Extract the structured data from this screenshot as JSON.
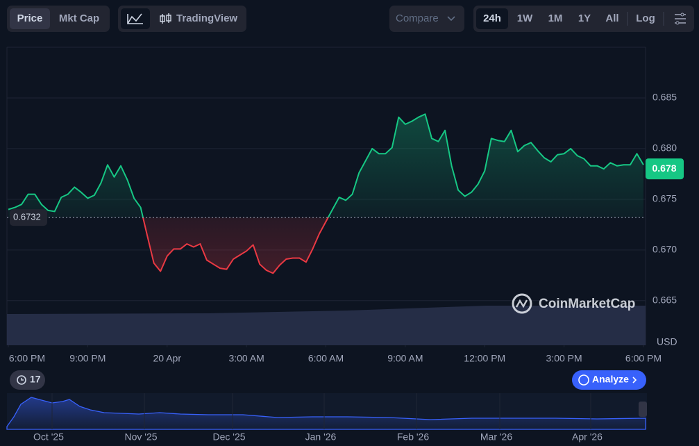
{
  "toolbar": {
    "price": "Price",
    "mkt_cap": "Mkt Cap",
    "trading_view": "TradingView",
    "compare": "Compare",
    "ranges": [
      "24h",
      "1W",
      "1M",
      "1Y",
      "All"
    ],
    "log": "Log"
  },
  "chart_data": {
    "type": "line",
    "currency": "USD",
    "x": [
      0,
      0.25,
      0.5,
      0.75,
      1,
      1.25,
      1.5,
      1.75,
      2,
      2.25,
      2.5,
      2.75,
      3,
      3.25,
      3.5,
      3.75,
      4,
      4.25,
      4.5,
      4.75,
      5,
      5.25,
      5.5,
      5.75,
      6,
      6.25,
      6.5,
      6.75,
      7,
      7.25,
      7.5,
      7.75,
      8,
      8.25,
      8.5,
      8.75,
      9,
      9.25,
      9.5,
      9.75,
      10,
      10.25,
      10.5,
      10.75,
      11,
      11.25,
      11.5,
      11.75,
      12,
      12.25,
      12.5,
      12.75,
      13,
      13.25,
      13.5,
      13.75,
      14,
      14.25,
      14.5,
      14.75,
      15,
      15.25,
      15.5,
      15.75,
      16,
      16.25,
      16.5,
      16.75,
      17,
      17.25,
      17.5,
      17.75,
      18,
      18.25,
      18.5,
      18.75,
      19,
      19.25,
      19.5,
      19.75,
      20,
      20.25,
      20.5,
      20.75,
      21,
      21.25,
      21.5,
      21.75,
      22,
      22.25,
      22.5,
      22.75,
      23,
      23.25,
      23.5,
      23.75,
      24
    ],
    "values": [
      0.674,
      0.6742,
      0.6745,
      0.6755,
      0.6755,
      0.6745,
      0.6739,
      0.6738,
      0.6752,
      0.6755,
      0.6762,
      0.6757,
      0.6751,
      0.6754,
      0.6766,
      0.6784,
      0.6772,
      0.6783,
      0.6769,
      0.6751,
      0.6742,
      0.6714,
      0.6687,
      0.6679,
      0.6694,
      0.6701,
      0.6701,
      0.6706,
      0.6703,
      0.6706,
      0.669,
      0.6686,
      0.6682,
      0.6681,
      0.6691,
      0.6695,
      0.6699,
      0.6705,
      0.6686,
      0.668,
      0.6677,
      0.6685,
      0.6691,
      0.6692,
      0.6692,
      0.6688,
      0.6701,
      0.6716,
      0.6728,
      0.674,
      0.6752,
      0.6749,
      0.6755,
      0.6776,
      0.6788,
      0.68,
      0.6795,
      0.6795,
      0.6801,
      0.6831,
      0.6824,
      0.6827,
      0.6831,
      0.6834,
      0.681,
      0.6807,
      0.6818,
      0.6783,
      0.6759,
      0.6753,
      0.6757,
      0.6765,
      0.6778,
      0.681,
      0.6808,
      0.6807,
      0.6818,
      0.6797,
      0.6803,
      0.6806,
      0.6798,
      0.6791,
      0.6787,
      0.6794,
      0.6795,
      0.68,
      0.6793,
      0.679,
      0.6783,
      0.6783,
      0.678,
      0.6786,
      0.6783,
      0.6784,
      0.6784,
      0.6795,
      0.6784
    ],
    "up_color": "#16c784",
    "down_color": "#ea3943",
    "base_price": 0.6732,
    "last_price": 0.678,
    "xlim": [
      0,
      24
    ],
    "xticks": [
      {
        "value": 0,
        "label": "6:00 PM"
      },
      {
        "value": 3,
        "label": "9:00 PM"
      },
      {
        "value": 6,
        "label": "20 Apr"
      },
      {
        "value": 9,
        "label": "3:00 AM"
      },
      {
        "value": 12,
        "label": "6:00 AM"
      },
      {
        "value": 15,
        "label": "9:00 AM"
      },
      {
        "value": 18,
        "label": "12:00 PM"
      },
      {
        "value": 21,
        "label": "3:00 PM"
      },
      {
        "value": 24,
        "label": "6:00 PM"
      }
    ],
    "ylim": [
      0.6606,
      0.69
    ],
    "yticks": [
      0.665,
      {
        "value": 0.67,
        "label": "0.670"
      },
      0.675,
      {
        "value": 0.68,
        "label": "0.680"
      },
      0.685
    ],
    "grid": true
  },
  "watermark": "CoinMarketCap",
  "events_count": "17",
  "analyze": "Analyze",
  "navigator": {
    "labels": [
      "Oct '25",
      "Nov '25",
      "Dec '25",
      "Jan '26",
      "Feb '26",
      "Mar '26",
      "Apr '26"
    ]
  }
}
